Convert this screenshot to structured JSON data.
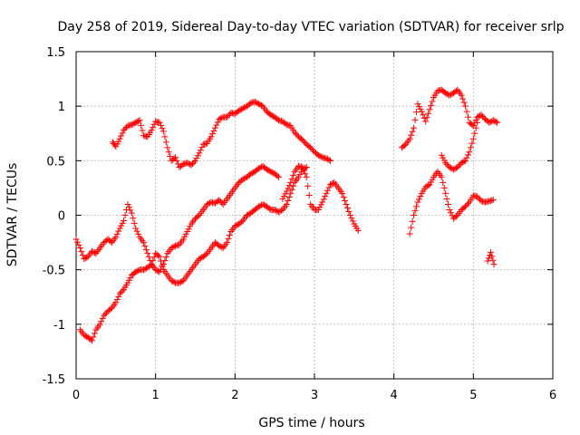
{
  "chart_data": {
    "type": "scatter",
    "title": "Day 258 of 2019, Sidereal Day-to-day VTEC variation (SDTVAR) for receiver srlp",
    "xlabel": "GPS time / hours",
    "ylabel": "SDTVAR / TECUs",
    "xlim": [
      0,
      6
    ],
    "ylim": [
      -1.5,
      1.5
    ],
    "xticks": [
      0,
      1,
      2,
      3,
      4,
      5,
      6
    ],
    "yticks": [
      -1.5,
      -1,
      -0.5,
      0,
      0.5,
      1,
      1.5
    ],
    "x_tick_labels": [
      "0",
      "1",
      "2",
      "3",
      "4",
      "5",
      "6"
    ],
    "y_tick_labels": [
      "-1.5",
      "-1",
      "-0.5",
      "0",
      "0.5",
      "1",
      "1.5"
    ],
    "grid": true,
    "marker": "plus",
    "marker_color": "#ff0000",
    "series": [
      {
        "x": [
          0.46,
          0.5,
          0.55,
          0.6,
          0.65,
          0.7,
          0.75,
          0.8,
          0.85,
          0.9,
          0.95,
          1.0,
          1.05,
          1.1,
          1.15,
          1.2,
          1.25,
          1.3,
          1.35,
          1.4,
          1.45,
          1.5,
          1.55,
          1.6,
          1.65,
          1.7,
          1.75,
          1.8,
          1.85,
          1.9,
          1.95,
          2.0,
          2.05,
          2.1,
          2.15,
          2.2,
          2.25,
          2.3,
          2.35,
          2.4,
          2.45,
          2.5,
          2.55,
          2.6,
          2.65,
          2.7,
          2.75,
          2.8,
          2.85,
          2.9,
          2.95,
          3.0,
          3.05,
          3.1,
          3.15,
          3.2
        ],
        "y": [
          0.67,
          0.63,
          0.7,
          0.78,
          0.82,
          0.83,
          0.85,
          0.87,
          0.73,
          0.72,
          0.78,
          0.86,
          0.85,
          0.77,
          0.62,
          0.5,
          0.53,
          0.44,
          0.47,
          0.48,
          0.46,
          0.5,
          0.57,
          0.65,
          0.66,
          0.72,
          0.8,
          0.88,
          0.9,
          0.9,
          0.94,
          0.93,
          0.96,
          0.98,
          1.0,
          1.03,
          1.04,
          1.02,
          1.0,
          0.95,
          0.92,
          0.9,
          0.87,
          0.86,
          0.83,
          0.82,
          0.76,
          0.72,
          0.69,
          0.65,
          0.62,
          0.58,
          0.55,
          0.53,
          0.52,
          0.5
        ]
      },
      {
        "x": [
          4.1,
          4.15,
          4.2,
          4.25,
          4.3,
          4.35,
          4.4,
          4.45,
          4.5,
          4.55,
          4.6,
          4.65,
          4.7,
          4.75,
          4.8,
          4.85,
          4.9,
          4.95,
          5.0,
          5.05,
          5.1,
          5.15,
          5.2,
          5.25,
          5.3
        ],
        "y": [
          0.62,
          0.65,
          0.7,
          0.8,
          1.02,
          0.95,
          0.86,
          0.97,
          1.08,
          1.14,
          1.15,
          1.12,
          1.1,
          1.12,
          1.15,
          1.1,
          1.0,
          0.85,
          0.82,
          0.9,
          0.92,
          0.88,
          0.85,
          0.87,
          0.85
        ]
      },
      {
        "x": [
          4.6,
          4.65,
          4.7,
          4.75,
          4.8,
          4.85,
          4.9,
          4.95,
          5.0,
          5.05
        ],
        "y": [
          0.55,
          0.48,
          0.44,
          0.42,
          0.44,
          0.48,
          0.5,
          0.58,
          0.7,
          0.85
        ]
      },
      {
        "x": [
          0.0,
          0.05,
          0.1,
          0.15,
          0.2,
          0.25,
          0.3,
          0.35,
          0.4,
          0.45,
          0.5,
          0.55,
          0.6,
          0.65,
          0.7,
          0.75,
          0.8,
          0.85,
          0.9,
          0.95,
          1.0,
          1.05,
          1.1,
          1.15,
          1.2,
          1.25,
          1.3,
          1.35,
          1.4,
          1.45,
          1.5,
          1.55,
          1.6,
          1.65,
          1.7,
          1.75,
          1.8,
          1.85,
          1.9,
          1.95,
          2.0,
          2.05,
          2.1,
          2.15,
          2.2,
          2.25,
          2.3,
          2.35,
          2.4,
          2.45,
          2.5,
          2.55
        ],
        "y": [
          -0.22,
          -0.3,
          -0.4,
          -0.38,
          -0.33,
          -0.35,
          -0.3,
          -0.25,
          -0.22,
          -0.25,
          -0.2,
          -0.12,
          -0.05,
          0.1,
          0.02,
          -0.12,
          -0.2,
          -0.25,
          -0.35,
          -0.45,
          -0.5,
          -0.52,
          -0.45,
          -0.35,
          -0.3,
          -0.28,
          -0.27,
          -0.22,
          -0.15,
          -0.08,
          -0.03,
          0.0,
          0.05,
          0.1,
          0.12,
          0.11,
          0.14,
          0.1,
          0.15,
          0.2,
          0.25,
          0.3,
          0.33,
          0.35,
          0.38,
          0.4,
          0.43,
          0.45,
          0.42,
          0.4,
          0.38,
          0.35
        ]
      },
      {
        "x": [
          2.6,
          2.65,
          2.7,
          2.75,
          2.8,
          2.85,
          2.9,
          2.95,
          3.0,
          3.05,
          3.1,
          3.15,
          3.2,
          3.25,
          3.3,
          3.35,
          3.4,
          3.45,
          3.5,
          3.55
        ],
        "y": [
          0.15,
          0.22,
          0.3,
          0.4,
          0.45,
          0.44,
          0.35,
          0.1,
          0.05,
          0.05,
          0.12,
          0.2,
          0.28,
          0.3,
          0.25,
          0.2,
          0.1,
          0.0,
          -0.08,
          -0.14
        ]
      },
      {
        "x": [
          4.2,
          4.25,
          4.3,
          4.35,
          4.4,
          4.45,
          4.5,
          4.55,
          4.6,
          4.65,
          4.7,
          4.75,
          4.8,
          4.85,
          4.9,
          4.95,
          5.0,
          5.05,
          5.1,
          5.15,
          5.2,
          5.25
        ],
        "y": [
          -0.17,
          0.0,
          0.12,
          0.2,
          0.26,
          0.28,
          0.35,
          0.4,
          0.35,
          0.2,
          0.05,
          -0.03,
          0.0,
          0.05,
          0.08,
          0.12,
          0.18,
          0.17,
          0.13,
          0.12,
          0.13,
          0.14
        ]
      },
      {
        "x": [
          5.18,
          5.22,
          5.26
        ],
        "y": [
          -0.42,
          -0.34,
          -0.45
        ]
      },
      {
        "x": [
          0.05,
          0.1,
          0.15,
          0.2,
          0.25,
          0.3,
          0.35,
          0.4,
          0.45,
          0.5,
          0.55,
          0.6,
          0.65,
          0.7,
          0.75,
          0.8,
          0.85,
          0.9,
          0.95,
          1.0,
          1.05,
          1.1,
          1.15,
          1.2,
          1.25,
          1.3,
          1.35,
          1.4,
          1.45,
          1.5,
          1.55,
          1.6,
          1.65,
          1.7,
          1.75,
          1.8,
          1.85,
          1.9,
          1.95,
          2.0,
          2.05,
          2.1,
          2.15,
          2.2,
          2.25,
          2.3,
          2.35,
          2.4,
          2.45,
          2.5,
          2.55,
          2.6,
          2.65,
          2.7,
          2.75,
          2.8,
          2.85,
          2.9
        ],
        "y": [
          -1.05,
          -1.1,
          -1.12,
          -1.15,
          -1.05,
          -1.0,
          -0.92,
          -0.88,
          -0.85,
          -0.8,
          -0.72,
          -0.68,
          -0.62,
          -0.55,
          -0.52,
          -0.5,
          -0.5,
          -0.48,
          -0.45,
          -0.35,
          -0.38,
          -0.5,
          -0.55,
          -0.6,
          -0.62,
          -0.62,
          -0.6,
          -0.55,
          -0.5,
          -0.45,
          -0.4,
          -0.38,
          -0.35,
          -0.3,
          -0.25,
          -0.28,
          -0.3,
          -0.25,
          -0.15,
          -0.1,
          -0.08,
          -0.05,
          0.0,
          0.02,
          0.05,
          0.08,
          0.1,
          0.08,
          0.05,
          0.05,
          0.03,
          0.05,
          0.1,
          0.2,
          0.3,
          0.35,
          0.42,
          0.44
        ]
      }
    ]
  }
}
